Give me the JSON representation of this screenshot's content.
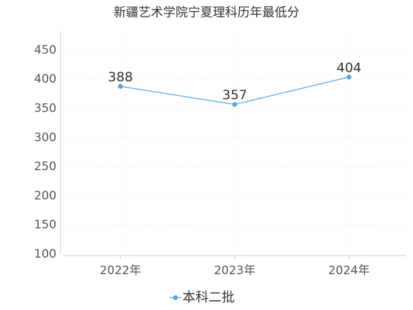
{
  "chart_data": {
    "type": "line",
    "title": "新疆艺术学院宁夏理科历年最低分",
    "categories": [
      "2022年",
      "2023年",
      "2024年"
    ],
    "series": [
      {
        "name": "本科二批",
        "color": "#4ea6ee",
        "values": [
          388,
          357,
          404
        ]
      }
    ],
    "ylim": [
      100,
      483
    ],
    "yticks": [
      100,
      150,
      200,
      250,
      300,
      350,
      400,
      450
    ],
    "grid": true,
    "legend": "bottom"
  }
}
